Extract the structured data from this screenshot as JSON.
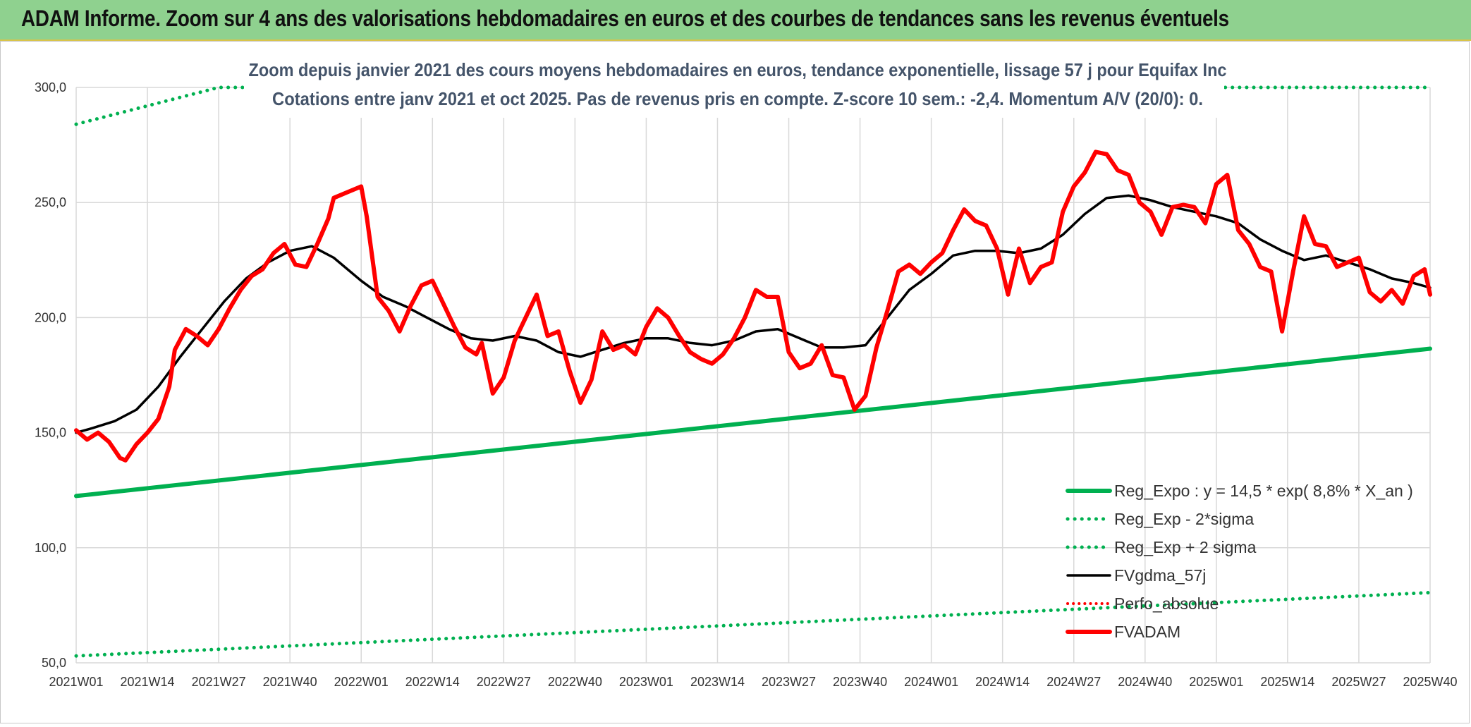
{
  "banner": {
    "title": "ADAM Informe. Zoom sur 4 ans des valorisations hebdomadaires en euros et des courbes de tendances sans les revenus éventuels"
  },
  "chart_data": {
    "type": "line",
    "title_line1": "Zoom depuis janvier 2021 des cours moyens hebdomadaires en euros, tendance exponentielle, lissage 57 j pour Equifax Inc",
    "title_line2": "Cotations entre janv 2021 et oct 2025. Pas de revenus pris en compte. Z-score 10 sem.: -2,4. Momentum A/V (20/0): 0.",
    "ylim": [
      50,
      300
    ],
    "y_ticks": [
      "50,0",
      "100,0",
      "150,0",
      "200,0",
      "250,0",
      "300,0"
    ],
    "x_ticks": [
      "2021W01",
      "2021W14",
      "2021W27",
      "2021W40",
      "2022W01",
      "2022W14",
      "2022W27",
      "2022W40",
      "2023W01",
      "2023W14",
      "2023W27",
      "2023W40",
      "2024W01",
      "2024W14",
      "2024W27",
      "2024W40",
      "2025W01",
      "2025W14",
      "2025W27",
      "2025W40"
    ],
    "grid": true,
    "legend_position": "bottom-right",
    "colors": {
      "reg_expo": "#00b050",
      "fvgdma": "#000000",
      "fvadam": "#ff0000",
      "perfo": "#ff0000"
    },
    "series": [
      {
        "name": "Reg_Expo : y = 14,5 * exp( 8,8% *  X_an )",
        "style": "solid-thick",
        "x": [
          "2021W01",
          "2025W40"
        ],
        "values": [
          122.5,
          186.5
        ]
      },
      {
        "name": "Reg_Exp - 2*sigma",
        "style": "dotted",
        "x": [
          "2021W01",
          "2025W40"
        ],
        "values": [
          53,
          80.5
        ]
      },
      {
        "name": "Reg_Exp + 2 sigma",
        "style": "dotted",
        "x": [
          "2021W01",
          "2021W27",
          "2025W04",
          "2025W40"
        ],
        "values": [
          284,
          300,
          300,
          300
        ]
      },
      {
        "name": "FVgdma_57j",
        "style": "solid",
        "x": [
          "2021W01",
          "2021W04",
          "2021W08",
          "2021W12",
          "2021W16",
          "2021W20",
          "2021W24",
          "2021W28",
          "2021W32",
          "2021W36",
          "2021W40",
          "2021W44",
          "2021W48",
          "2022W01",
          "2022W05",
          "2022W09",
          "2022W13",
          "2022W17",
          "2022W21",
          "2022W25",
          "2022W29",
          "2022W33",
          "2022W37",
          "2022W41",
          "2022W45",
          "2022W49",
          "2023W01",
          "2023W05",
          "2023W09",
          "2023W13",
          "2023W17",
          "2023W21",
          "2023W25",
          "2023W29",
          "2023W33",
          "2023W37",
          "2023W41",
          "2023W45",
          "2023W49",
          "2024W01",
          "2024W05",
          "2024W09",
          "2024W13",
          "2024W17",
          "2024W21",
          "2024W25",
          "2024W29",
          "2024W33",
          "2024W37",
          "2024W41",
          "2024W45",
          "2024W49",
          "2025W01",
          "2025W05",
          "2025W09",
          "2025W13",
          "2025W17",
          "2025W21",
          "2025W25",
          "2025W29",
          "2025W33",
          "2025W37",
          "2025W40"
        ],
        "values": [
          150,
          152,
          155,
          160,
          170,
          183,
          195,
          207,
          217,
          224,
          229,
          231,
          226,
          216,
          209,
          205,
          200,
          195,
          191,
          190,
          192,
          190,
          185,
          183,
          186,
          189,
          191,
          191,
          189,
          188,
          190,
          194,
          195,
          191,
          187,
          187,
          188,
          200,
          212,
          219,
          227,
          229,
          229,
          228,
          230,
          236,
          245,
          252,
          253,
          251,
          248,
          246,
          244,
          241,
          234,
          229,
          225,
          227,
          224,
          221,
          217,
          215,
          213
        ]
      },
      {
        "name": "Perfo_absolue",
        "style": "dotted",
        "x": [],
        "values": []
      },
      {
        "name": "FVADAM",
        "style": "solid-thick",
        "x": [
          "2021W01",
          "2021W03",
          "2021W05",
          "2021W07",
          "2021W09",
          "2021W10",
          "2021W12",
          "2021W14",
          "2021W16",
          "2021W18",
          "2021W19",
          "2021W21",
          "2021W23",
          "2021W25",
          "2021W27",
          "2021W29",
          "2021W31",
          "2021W33",
          "2021W35",
          "2021W37",
          "2021W39",
          "2021W41",
          "2021W43",
          "2021W45",
          "2021W47",
          "2021W48",
          "2021W50",
          "2022W01",
          "2022W02",
          "2022W04",
          "2022W06",
          "2022W08",
          "2022W10",
          "2022W12",
          "2022W14",
          "2022W16",
          "2022W18",
          "2022W20",
          "2022W22",
          "2022W23",
          "2022W25",
          "2022W27",
          "2022W29",
          "2022W31",
          "2022W33",
          "2022W35",
          "2022W37",
          "2022W39",
          "2022W41",
          "2022W43",
          "2022W45",
          "2022W47",
          "2022W49",
          "2022W51",
          "2023W01",
          "2023W03",
          "2023W05",
          "2023W07",
          "2023W09",
          "2023W11",
          "2023W13",
          "2023W15",
          "2023W17",
          "2023W19",
          "2023W21",
          "2023W23",
          "2023W25",
          "2023W27",
          "2023W29",
          "2023W31",
          "2023W33",
          "2023W35",
          "2023W37",
          "2023W39",
          "2023W41",
          "2023W43",
          "2023W45",
          "2023W47",
          "2023W49",
          "2023W51",
          "2024W01",
          "2024W03",
          "2024W05",
          "2024W07",
          "2024W09",
          "2024W11",
          "2024W13",
          "2024W15",
          "2024W17",
          "2024W19",
          "2024W21",
          "2024W23",
          "2024W25",
          "2024W27",
          "2024W29",
          "2024W31",
          "2024W33",
          "2024W35",
          "2024W37",
          "2024W39",
          "2024W41",
          "2024W43",
          "2024W45",
          "2024W47",
          "2024W49",
          "2024W51",
          "2025W01",
          "2025W03",
          "2025W05",
          "2025W07",
          "2025W09",
          "2025W11",
          "2025W13",
          "2025W15",
          "2025W17",
          "2025W19",
          "2025W21",
          "2025W23",
          "2025W25",
          "2025W27",
          "2025W29",
          "2025W31",
          "2025W33",
          "2025W35",
          "2025W37",
          "2025W39",
          "2025W40"
        ],
        "values": [
          151,
          147,
          150,
          146,
          139,
          138,
          145,
          150,
          156,
          170,
          186,
          195,
          192,
          188,
          195,
          204,
          212,
          218,
          221,
          228,
          232,
          223,
          222,
          232,
          243,
          252,
          254,
          257,
          244,
          209,
          203,
          194,
          205,
          214,
          216,
          206,
          196,
          187,
          184,
          189,
          167,
          174,
          190,
          200,
          210,
          192,
          194,
          177,
          163,
          173,
          194,
          186,
          188,
          184,
          196,
          204,
          200,
          192,
          185,
          182,
          180,
          184,
          191,
          200,
          212,
          209,
          209,
          185,
          178,
          180,
          188,
          175,
          174,
          160,
          166,
          187,
          203,
          220,
          223,
          219,
          224,
          228,
          238,
          247,
          242,
          240,
          230,
          210,
          230,
          215,
          222,
          224,
          246,
          257,
          263,
          272,
          271,
          264,
          262,
          250,
          246,
          236,
          248,
          249,
          248,
          241,
          258,
          262,
          238,
          232,
          222,
          220,
          194,
          220,
          244,
          232,
          231,
          222,
          224,
          226,
          211,
          207,
          212,
          206,
          218,
          221,
          210
        ]
      }
    ]
  }
}
